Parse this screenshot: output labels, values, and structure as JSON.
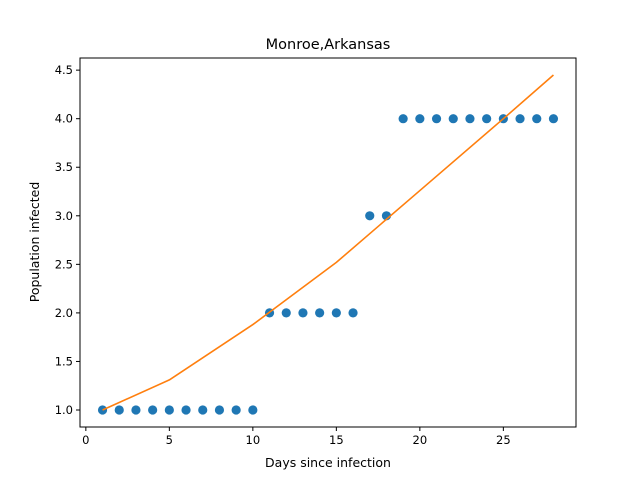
{
  "chart_data": {
    "type": "scatter",
    "title": "Monroe,Arkansas",
    "xlabel": "Days since infection",
    "ylabel": "Population infected",
    "xlim": [
      -0.35,
      29.35
    ],
    "ylim": [
      0.825,
      4.625
    ],
    "xticks": [
      0,
      5,
      10,
      15,
      20,
      25
    ],
    "xtick_labels": [
      "0",
      "5",
      "10",
      "15",
      "20",
      "25"
    ],
    "yticks": [
      1.0,
      1.5,
      2.0,
      2.5,
      3.0,
      3.5,
      4.0,
      4.5
    ],
    "ytick_labels": [
      "1.0",
      "1.5",
      "2.0",
      "2.5",
      "3.0",
      "3.5",
      "4.0",
      "4.5"
    ],
    "grid": false,
    "series": [
      {
        "kind": "scatter",
        "color": "#1f77b4",
        "x": [
          1,
          2,
          3,
          4,
          5,
          6,
          7,
          8,
          9,
          10,
          11,
          12,
          13,
          14,
          15,
          16,
          17,
          18,
          19,
          20,
          21,
          22,
          23,
          24,
          25,
          26,
          27,
          28
        ],
        "y": [
          1,
          1,
          1,
          1,
          1,
          1,
          1,
          1,
          1,
          1,
          2,
          2,
          2,
          2,
          2,
          2,
          3,
          3,
          4,
          4,
          4,
          4,
          4,
          4,
          4,
          4,
          4,
          4
        ]
      },
      {
        "kind": "line",
        "color": "#ff7f0e",
        "x": [
          1,
          5,
          10,
          15,
          20,
          25,
          28
        ],
        "y": [
          1.0,
          1.31,
          1.88,
          2.52,
          3.26,
          4.0,
          4.45
        ]
      }
    ]
  }
}
